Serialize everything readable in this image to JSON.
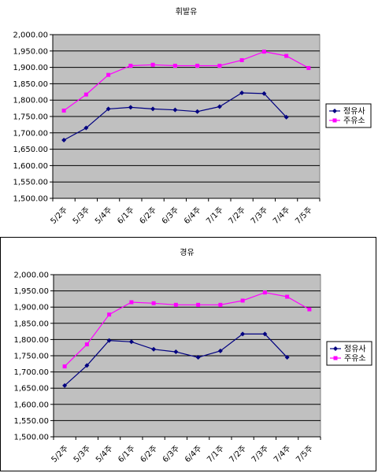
{
  "charts": [
    {
      "title": "휘발유",
      "legend": [
        {
          "label": "정유사",
          "color": "#000080",
          "marker": "diamond"
        },
        {
          "label": "주유소",
          "color": "#ff00ff",
          "marker": "square"
        }
      ]
    },
    {
      "title": "경유",
      "legend": [
        {
          "label": "정유사",
          "color": "#000080",
          "marker": "diamond"
        },
        {
          "label": "주유소",
          "color": "#ff00ff",
          "marker": "square"
        }
      ]
    }
  ],
  "chart_data": [
    {
      "type": "line",
      "title": "휘발유",
      "categories": [
        "5/2주",
        "5/3주",
        "5/4주",
        "6/1주",
        "6/2주",
        "6/3주",
        "6/4주",
        "7/1주",
        "7/2주",
        "7/3주",
        "7/4주",
        "7/5주"
      ],
      "ylim": [
        1500,
        2000
      ],
      "yticks": [
        "1,500.00",
        "1,550.00",
        "1,600.00",
        "1,650.00",
        "1,700.00",
        "1,750.00",
        "1,800.00",
        "1,850.00",
        "1,900.00",
        "1,950.00",
        "2,000.00"
      ],
      "grid": true,
      "plot_background": "#c0c0c0",
      "legend_position": "right",
      "series": [
        {
          "name": "정유사",
          "color": "#000080",
          "marker": "diamond",
          "values": [
            1678,
            1715,
            1773,
            1778,
            1773,
            1770,
            1765,
            1780,
            1822,
            1820,
            1748,
            null
          ]
        },
        {
          "name": "주유소",
          "color": "#ff00ff",
          "marker": "square",
          "values": [
            1768,
            1817,
            1877,
            1905,
            1908,
            1905,
            1905,
            1905,
            1922,
            1948,
            1935,
            1898
          ]
        }
      ]
    },
    {
      "type": "line",
      "title": "경유",
      "categories": [
        "5/2주",
        "5/3주",
        "5/4주",
        "6/1주",
        "6/2주",
        "6/3주",
        "6/4주",
        "7/1주",
        "7/2주",
        "7/3주",
        "7/4주",
        "7/5주"
      ],
      "ylim": [
        1500,
        2000
      ],
      "yticks": [
        "1,500.00",
        "1,550.00",
        "1,600.00",
        "1,650.00",
        "1,700.00",
        "1,750.00",
        "1,800.00",
        "1,850.00",
        "1,900.00",
        "1,950.00",
        "2,000.00"
      ],
      "grid": true,
      "plot_background": "#c0c0c0",
      "legend_position": "right",
      "series": [
        {
          "name": "정유사",
          "color": "#000080",
          "marker": "diamond",
          "values": [
            1658,
            1720,
            1797,
            1793,
            1770,
            1762,
            1745,
            1765,
            1817,
            1817,
            1745,
            null
          ]
        },
        {
          "name": "주유소",
          "color": "#ff00ff",
          "marker": "square",
          "values": [
            1717,
            1785,
            1877,
            1915,
            1912,
            1907,
            1907,
            1907,
            1920,
            1945,
            1932,
            1893
          ]
        }
      ]
    }
  ]
}
